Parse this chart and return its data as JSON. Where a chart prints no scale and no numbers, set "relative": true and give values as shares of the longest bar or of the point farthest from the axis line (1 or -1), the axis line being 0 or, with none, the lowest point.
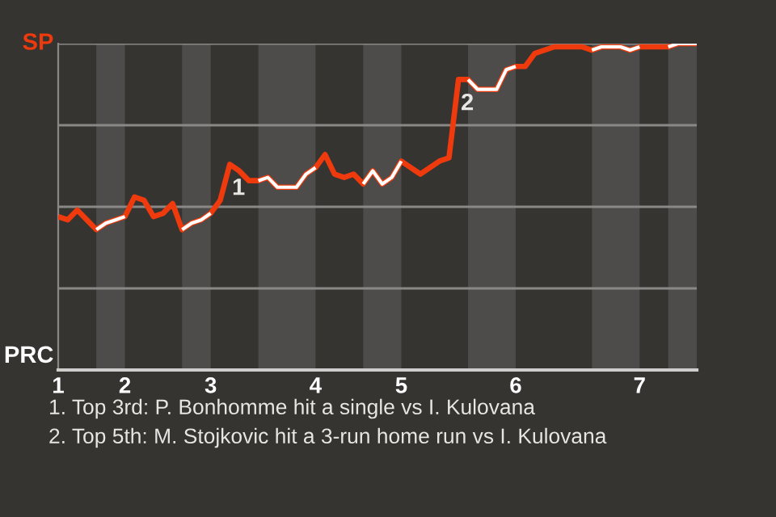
{
  "chart_data": {
    "type": "line",
    "relative": true,
    "categories": [
      "1",
      null,
      null,
      null,
      null,
      null,
      null,
      "2",
      null,
      null,
      null,
      null,
      null,
      null,
      null,
      null,
      "3",
      null,
      null,
      null,
      null,
      null,
      null,
      null,
      null,
      null,
      null,
      "4",
      null,
      null,
      null,
      null,
      null,
      null,
      null,
      null,
      "5",
      null,
      null,
      null,
      null,
      null,
      null,
      null,
      null,
      null,
      null,
      null,
      "6",
      null,
      null,
      null,
      null,
      null,
      null,
      null,
      null,
      null,
      null,
      null,
      null,
      "7",
      null,
      null,
      null,
      null,
      null,
      null
    ],
    "grid": "y",
    "legend": false,
    "series": [
      {
        "color": "#ee3a0c",
        "values": [
          0.47,
          0.46,
          0.49,
          0.46,
          0.43,
          0.45,
          0.46,
          0.47,
          0.53,
          0.52,
          0.47,
          0.48,
          0.51,
          0.43,
          0.45,
          0.46,
          0.48,
          0.52,
          0.63,
          0.61,
          0.58,
          0.58,
          0.59,
          0.56,
          0.56,
          0.56,
          0.6,
          0.62,
          0.66,
          0.6,
          0.59,
          0.6,
          0.57,
          0.61,
          0.57,
          0.59,
          0.64,
          0.62,
          0.6,
          0.62,
          0.64,
          0.65,
          0.89,
          0.89,
          0.86,
          0.86,
          0.86,
          0.92,
          0.93,
          0.93,
          0.97,
          0.98,
          0.99,
          0.99,
          0.99,
          0.99,
          0.98,
          0.99,
          0.99,
          0.99,
          0.98,
          0.99,
          0.99,
          0.99,
          0.99,
          1.0,
          1.0,
          1.0
        ]
      },
      {
        "color": "#ffffff",
        "values": [
          null,
          null,
          null,
          null,
          0.43,
          0.45,
          0.46,
          0.47,
          null,
          null,
          null,
          null,
          null,
          0.43,
          0.45,
          0.46,
          0.48,
          null,
          null,
          null,
          null,
          0.58,
          0.59,
          0.56,
          0.56,
          0.56,
          0.6,
          0.62,
          null,
          null,
          null,
          null,
          0.57,
          0.61,
          0.57,
          0.59,
          0.64,
          null,
          null,
          null,
          null,
          null,
          null,
          0.89,
          0.86,
          0.86,
          0.86,
          0.92,
          0.93,
          null,
          null,
          null,
          null,
          null,
          null,
          null,
          0.98,
          0.99,
          0.99,
          0.99,
          0.98,
          0.99,
          null,
          null,
          0.99,
          1.0,
          1.0,
          1.0
        ]
      }
    ],
    "annotations": [
      "SP",
      "PRC",
      {
        "text": "1",
        "y": 0.63
      },
      {
        "text": "2",
        "y": 0.89
      },
      "1. Top 3rd: P. Bonhomme hit a single vs I. Kulovana",
      "2. Top 5th: M. Stojkovic hit a 3-run home run vs I. Kulovana"
    ]
  }
}
